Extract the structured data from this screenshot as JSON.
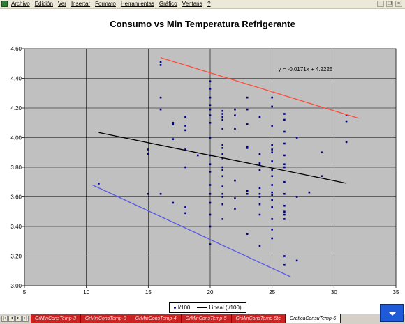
{
  "menubar": {
    "items": [
      "Archivo",
      "Edición",
      "Ver",
      "Insertar",
      "Formato",
      "Herramientas",
      "Gráfico",
      "Ventana",
      "?"
    ]
  },
  "chart_data": {
    "type": "scatter",
    "title": "Consumo vs Min Temperatura Refrigerante",
    "xlabel": "",
    "ylabel": "",
    "xlim": [
      5,
      35
    ],
    "ylim": [
      3.0,
      4.6
    ],
    "xticks": [
      "5",
      "10",
      "15",
      "20",
      "25",
      "30",
      "35"
    ],
    "yticks": [
      "3.00",
      "3.20",
      "3.40",
      "3.60",
      "3.80",
      "4.00",
      "4.20",
      "4.40",
      "4.60"
    ],
    "grid": true,
    "legend_position": "bottom",
    "equation": "y = -0.0171x + 4.2225",
    "series": [
      {
        "name": "l/100",
        "color": "#000080",
        "points": [
          [
            11,
            3.69
          ],
          [
            15,
            3.62
          ],
          [
            15,
            3.89
          ],
          [
            15,
            3.92
          ],
          [
            16,
            4.51
          ],
          [
            16,
            4.49
          ],
          [
            16,
            4.27
          ],
          [
            16,
            4.19
          ],
          [
            16,
            3.62
          ],
          [
            17,
            4.09
          ],
          [
            17,
            4.1
          ],
          [
            17,
            3.99
          ],
          [
            17,
            3.56
          ],
          [
            18,
            4.14
          ],
          [
            18,
            4.08
          ],
          [
            18,
            4.05
          ],
          [
            18,
            3.92
          ],
          [
            18,
            3.8
          ],
          [
            18,
            3.53
          ],
          [
            18,
            3.49
          ],
          [
            19,
            3.88
          ],
          [
            20,
            4.38
          ],
          [
            20,
            4.33
          ],
          [
            20,
            4.27
          ],
          [
            20,
            4.22
          ],
          [
            20,
            4.19
          ],
          [
            20,
            4.15
          ],
          [
            20,
            4.1
          ],
          [
            20,
            4.0
          ],
          [
            20,
            3.88
          ],
          [
            20,
            3.82
          ],
          [
            20,
            3.77
          ],
          [
            20,
            3.68
          ],
          [
            20,
            3.62
          ],
          [
            20,
            3.56
          ],
          [
            20,
            3.48
          ],
          [
            20,
            3.4
          ],
          [
            20,
            3.28
          ],
          [
            21,
            4.18
          ],
          [
            21,
            4.16
          ],
          [
            21,
            4.14
          ],
          [
            21,
            4.12
          ],
          [
            21,
            4.06
          ],
          [
            21,
            3.95
          ],
          [
            21,
            3.93
          ],
          [
            21,
            3.89
          ],
          [
            21,
            3.86
          ],
          [
            21,
            3.8
          ],
          [
            21,
            3.78
          ],
          [
            21,
            3.74
          ],
          [
            21,
            3.67
          ],
          [
            21,
            3.62
          ],
          [
            21,
            3.6
          ],
          [
            21,
            3.55
          ],
          [
            21,
            3.45
          ],
          [
            22,
            4.19
          ],
          [
            22,
            4.15
          ],
          [
            22,
            4.06
          ],
          [
            22,
            3.71
          ],
          [
            22,
            3.59
          ],
          [
            22,
            3.52
          ],
          [
            23,
            4.27
          ],
          [
            23,
            4.19
          ],
          [
            23,
            4.09
          ],
          [
            23,
            3.94
          ],
          [
            23,
            3.93
          ],
          [
            23,
            3.64
          ],
          [
            23,
            3.62
          ],
          [
            23,
            3.35
          ],
          [
            24,
            4.14
          ],
          [
            24,
            3.89
          ],
          [
            24,
            3.83
          ],
          [
            24,
            3.82
          ],
          [
            24,
            3.78
          ],
          [
            24,
            3.66
          ],
          [
            24,
            3.62
          ],
          [
            24,
            3.6
          ],
          [
            24,
            3.55
          ],
          [
            24,
            3.48
          ],
          [
            24,
            3.27
          ],
          [
            25,
            4.27
          ],
          [
            25,
            4.21
          ],
          [
            25,
            4.08
          ],
          [
            25,
            3.95
          ],
          [
            25,
            3.92
          ],
          [
            25,
            3.9
          ],
          [
            25,
            3.84
          ],
          [
            25,
            3.78
          ],
          [
            25,
            3.74
          ],
          [
            25,
            3.68
          ],
          [
            25,
            3.63
          ],
          [
            25,
            3.61
          ],
          [
            25,
            3.58
          ],
          [
            25,
            3.53
          ],
          [
            25,
            3.45
          ],
          [
            25,
            3.38
          ],
          [
            25,
            3.32
          ],
          [
            26,
            4.16
          ],
          [
            26,
            4.12
          ],
          [
            26,
            4.04
          ],
          [
            26,
            3.96
          ],
          [
            26,
            3.88
          ],
          [
            26,
            3.82
          ],
          [
            26,
            3.8
          ],
          [
            26,
            3.7
          ],
          [
            26,
            3.62
          ],
          [
            26,
            3.54
          ],
          [
            26,
            3.5
          ],
          [
            26,
            3.48
          ],
          [
            26,
            3.45
          ],
          [
            26,
            3.2
          ],
          [
            26,
            3.14
          ],
          [
            27,
            4.0
          ],
          [
            27,
            3.6
          ],
          [
            27,
            3.17
          ],
          [
            28,
            3.63
          ],
          [
            29,
            3.9
          ],
          [
            29,
            3.74
          ],
          [
            31,
            4.15
          ],
          [
            31,
            4.11
          ],
          [
            31,
            3.97
          ]
        ]
      },
      {
        "name": "Lineal (l/100)",
        "color": "#000000",
        "type": "line",
        "points": [
          [
            11,
            4.034
          ],
          [
            31,
            3.692
          ]
        ]
      },
      {
        "color": "#ff4c3a",
        "type": "line",
        "points": [
          [
            16,
            4.54
          ],
          [
            32,
            4.13
          ]
        ]
      },
      {
        "color": "#5a5ae6",
        "type": "line",
        "points": [
          [
            10.5,
            3.68
          ],
          [
            26.5,
            3.06
          ]
        ]
      }
    ]
  },
  "legend": {
    "series_label": "l/100",
    "trend_label": "Lineal (l/100)"
  },
  "sheets": {
    "tabs": [
      "GrMinConsTemp-3",
      "GrMinConsTemp-3",
      "GrMinConsTemp-4",
      "GrMinConsTemp-5",
      "GrMinConsTemp-5tc",
      "GraficaConsuTemp-6"
    ]
  }
}
